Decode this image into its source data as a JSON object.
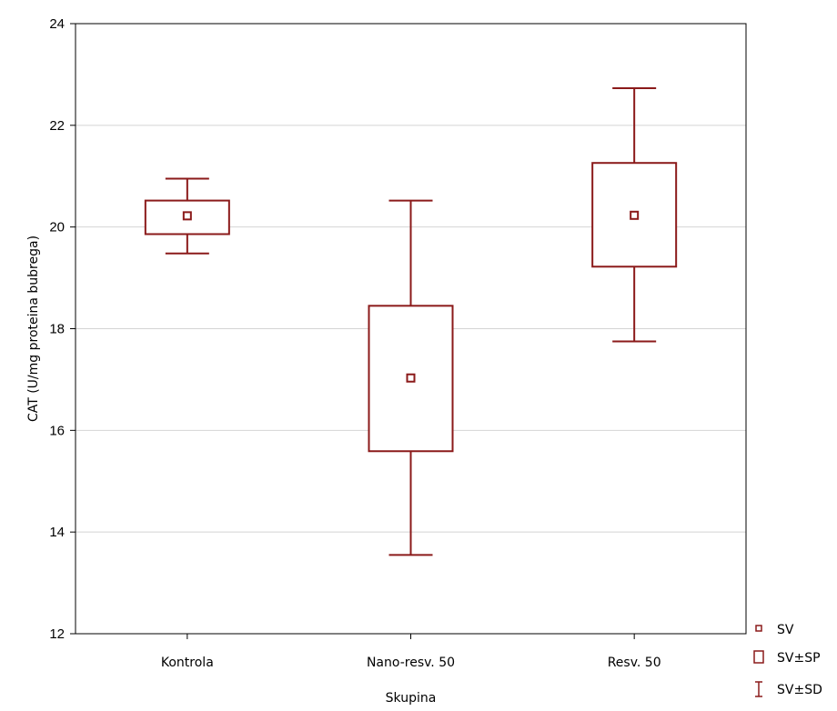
{
  "chart_data": {
    "type": "box",
    "title": "",
    "xlabel": "Skupina",
    "ylabel": "CAT (U/mg proteina bubrega)",
    "categories": [
      "Kontrola",
      "Nano-resv. 50",
      "Resv. 50"
    ],
    "ylim": [
      12,
      24
    ],
    "yticks": [
      "12",
      "14",
      "16",
      "18",
      "20",
      "22",
      "24"
    ],
    "grid": true,
    "grid_axis": "y",
    "legend_position": "bottom-right",
    "color": "#8b1a1a",
    "series": [
      {
        "name": "SV",
        "values": [
          20.22,
          17.03,
          20.23
        ]
      },
      {
        "name": "SV±SP",
        "lower": [
          19.86,
          15.59,
          19.22
        ],
        "upper": [
          20.52,
          18.45,
          21.26
        ]
      },
      {
        "name": "SV±SD",
        "lower": [
          19.48,
          13.55,
          17.75
        ],
        "upper": [
          20.95,
          20.52,
          22.73
        ]
      }
    ]
  }
}
